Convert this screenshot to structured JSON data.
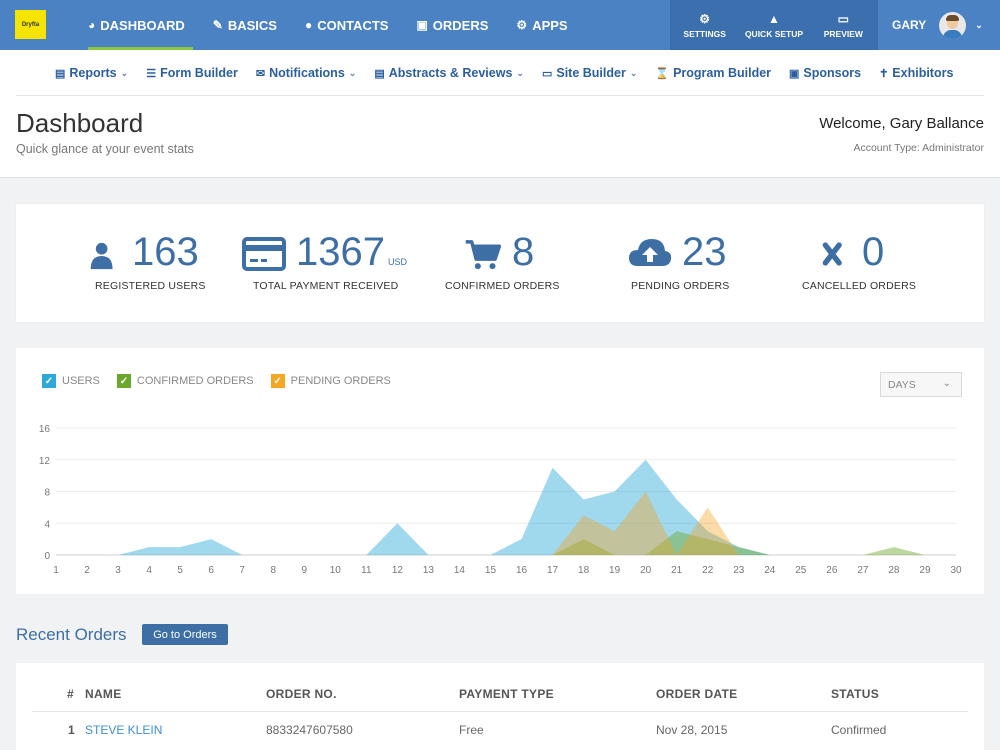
{
  "brand": {
    "logo_text": "Dryfta",
    "logo_color": "#f4e400"
  },
  "colors": {
    "primary": "#4a82c3",
    "accent_blue": "#3d6fa5",
    "users": "#2da8d8",
    "confirmed": "#6aa82b",
    "pending": "#f5a623"
  },
  "mainnav": [
    {
      "label": "DASHBOARD",
      "icon": "dashboard-gauge-icon"
    },
    {
      "label": "BASICS",
      "icon": "megaphone-icon"
    },
    {
      "label": "CONTACTS",
      "icon": "person-icon"
    },
    {
      "label": "ORDERS",
      "icon": "cart-icon"
    },
    {
      "label": "APPS",
      "icon": "cogs-icon"
    }
  ],
  "rightnav": [
    {
      "label": "SETTINGS",
      "icon": "gear-icon"
    },
    {
      "label": "QUICK SETUP",
      "icon": "rocket-icon"
    },
    {
      "label": "PREVIEW",
      "icon": "monitor-icon"
    }
  ],
  "user": {
    "name": "GARY"
  },
  "subnav": [
    {
      "label": "Reports",
      "icon": "report-icon",
      "dropdown": true
    },
    {
      "label": "Form Builder",
      "icon": "list-icon",
      "dropdown": false
    },
    {
      "label": "Notifications",
      "icon": "envelope-icon",
      "dropdown": true
    },
    {
      "label": "Abstracts & Reviews",
      "icon": "document-icon",
      "dropdown": true
    },
    {
      "label": "Site Builder",
      "icon": "laptop-icon",
      "dropdown": true
    },
    {
      "label": "Program Builder",
      "icon": "hourglass-icon",
      "dropdown": false
    },
    {
      "label": "Sponsors",
      "icon": "badge-icon",
      "dropdown": false
    },
    {
      "label": "Exhibitors",
      "icon": "exhibitor-icon",
      "dropdown": false
    }
  ],
  "header": {
    "title": "Dashboard",
    "subtitle": "Quick glance at your event stats",
    "welcome": "Welcome, Gary Ballance",
    "account_type": "Account Type: Administrator"
  },
  "stats": [
    {
      "value": "163",
      "unit": "",
      "label": "REGISTERED USERS",
      "icon": "user-icon"
    },
    {
      "value": "1367",
      "unit": "USD",
      "label": "TOTAL PAYMENT RECEIVED",
      "icon": "credit-card-icon"
    },
    {
      "value": "8",
      "unit": "",
      "label": "CONFIRMED ORDERS",
      "icon": "cart-icon"
    },
    {
      "value": "23",
      "unit": "",
      "label": "PENDING ORDERS",
      "icon": "cloud-upload-icon"
    },
    {
      "value": "0",
      "unit": "",
      "label": "CANCELLED ORDERS",
      "icon": "x-icon"
    }
  ],
  "chart_controls": {
    "legend": [
      {
        "label": "USERS",
        "checked": true,
        "color": "#2da8d8"
      },
      {
        "label": "CONFIRMED ORDERS",
        "checked": true,
        "color": "#6aa82b"
      },
      {
        "label": "PENDING ORDERS",
        "checked": true,
        "color": "#f5a623"
      }
    ],
    "period": "DAYS"
  },
  "chart_data": {
    "type": "area",
    "title": "",
    "xlabel": "",
    "ylabel": "",
    "x": [
      1,
      2,
      3,
      4,
      5,
      6,
      7,
      8,
      9,
      10,
      11,
      12,
      13,
      14,
      15,
      16,
      17,
      18,
      19,
      20,
      21,
      22,
      23,
      24,
      25,
      26,
      27,
      28,
      29,
      30
    ],
    "ylim": [
      0,
      16
    ],
    "yticks": [
      0,
      4,
      8,
      12,
      16
    ],
    "grid": true,
    "legend_position": "top-left",
    "series": [
      {
        "name": "USERS",
        "color": "#2da8d8",
        "values": [
          0,
          0,
          0,
          1,
          1,
          2,
          0,
          0,
          0,
          0,
          0,
          4,
          0,
          0,
          0,
          2,
          11,
          7,
          8,
          12,
          7,
          3,
          1,
          0,
          0,
          0,
          0,
          0,
          0,
          0
        ]
      },
      {
        "name": "CONFIRMED ORDERS",
        "color": "#6aa82b",
        "values": [
          0,
          0,
          0,
          0,
          0,
          0,
          0,
          0,
          0,
          0,
          0,
          0,
          0,
          0,
          0,
          0,
          0,
          2,
          0,
          0,
          3,
          2,
          1,
          0,
          0,
          0,
          0,
          1,
          0,
          0
        ]
      },
      {
        "name": "PENDING ORDERS",
        "color": "#f5a623",
        "values": [
          0,
          0,
          0,
          0,
          0,
          0,
          0,
          0,
          0,
          0,
          0,
          0,
          0,
          0,
          0,
          0,
          0,
          5,
          3,
          8,
          0,
          6,
          0,
          0,
          0,
          0,
          0,
          0,
          0,
          0
        ]
      }
    ]
  },
  "recent_orders": {
    "title": "Recent Orders",
    "button": "Go to Orders",
    "columns": [
      "#",
      "NAME",
      "ORDER NO.",
      "PAYMENT TYPE",
      "ORDER DATE",
      "STATUS"
    ],
    "rows": [
      {
        "index": "1",
        "name": "STEVE KLEIN",
        "order_no": "8833247607580",
        "payment_type": "Free",
        "order_date": "Nov 28, 2015",
        "status": "Confirmed"
      }
    ]
  }
}
